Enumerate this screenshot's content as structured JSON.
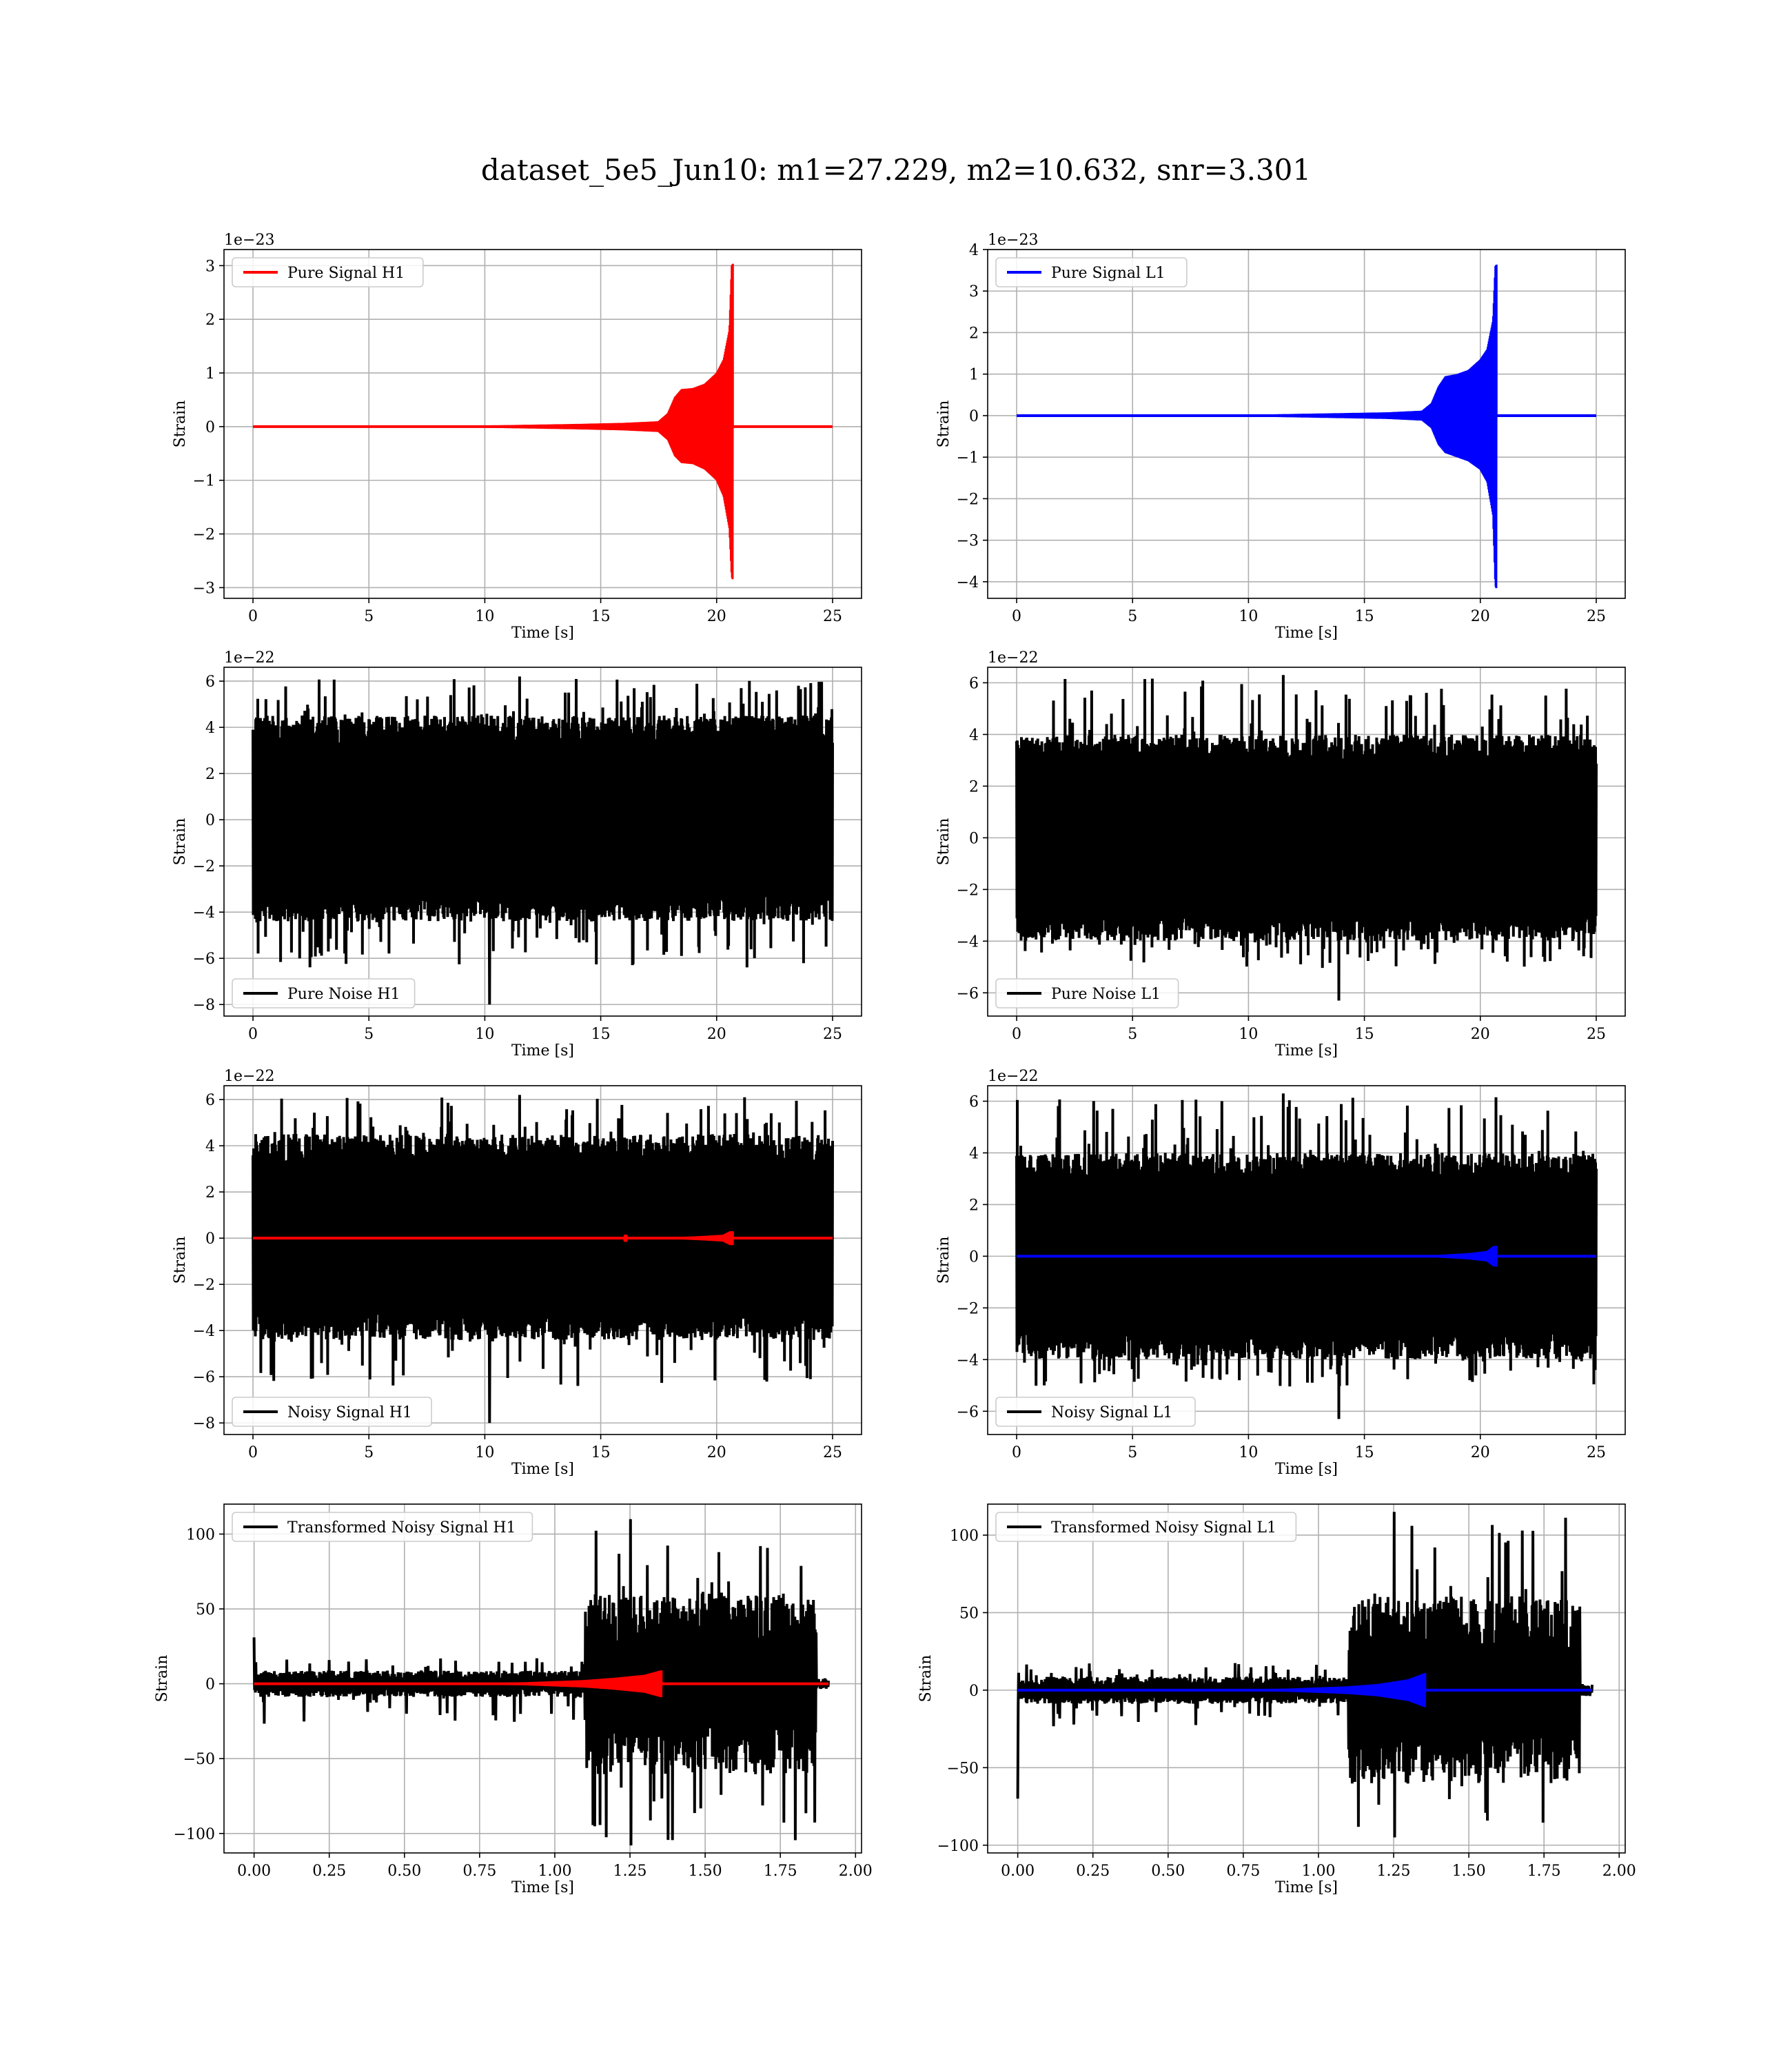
{
  "figure": {
    "title": "dataset_5e5_Jun10: m1=27.229, m2=10.632, snr=3.301"
  },
  "chart_data": [
    {
      "id": "pure-signal-h1",
      "type": "line",
      "xlabel": "Time [s]",
      "ylabel": "Strain",
      "offset_label": "1e−23",
      "xlim": [
        -1.25,
        26.25
      ],
      "ylim": [
        -3.2,
        3.3
      ],
      "xticks": [
        0,
        5,
        10,
        15,
        20,
        25
      ],
      "xtick_labels": [
        "0",
        "5",
        "10",
        "15",
        "20",
        "25"
      ],
      "yticks": [
        -3,
        -2,
        -1,
        0,
        1,
        2,
        3
      ],
      "ytick_labels": [
        "−3",
        "−2",
        "−1",
        "0",
        "1",
        "2",
        "3"
      ],
      "grid": true,
      "legend": {
        "location": "upper left",
        "entries": [
          {
            "label": "Pure Signal H1",
            "color": "#ff0000"
          }
        ]
      },
      "series": [
        {
          "name": "Pure Signal H1",
          "color": "#ff0000",
          "kind": "chirp",
          "x_start": 0,
          "x_end": 25,
          "merger_time": 20.7,
          "envelope_t": [
            0,
            10,
            14,
            16,
            17.5,
            17.9,
            18.2,
            18.5,
            19,
            19.5,
            20,
            20.3,
            20.55,
            20.65,
            20.72
          ],
          "envelope_upper": [
            0,
            0.02,
            0.05,
            0.07,
            0.1,
            0.25,
            0.55,
            0.7,
            0.72,
            0.8,
            1.0,
            1.25,
            1.8,
            3.0,
            3.05
          ],
          "envelope_lower": [
            0,
            -0.02,
            -0.05,
            -0.07,
            -0.1,
            -0.25,
            -0.55,
            -0.68,
            -0.7,
            -0.8,
            -1.0,
            -1.3,
            -1.9,
            -2.8,
            -2.88
          ]
        }
      ]
    },
    {
      "id": "pure-signal-l1",
      "type": "line",
      "xlabel": "Time [s]",
      "ylabel": "Strain",
      "offset_label": "1e−23",
      "xlim": [
        -1.25,
        26.25
      ],
      "ylim": [
        -4.4,
        4.0
      ],
      "xticks": [
        0,
        5,
        10,
        15,
        20,
        25
      ],
      "xtick_labels": [
        "0",
        "5",
        "10",
        "15",
        "20",
        "25"
      ],
      "yticks": [
        -4,
        -3,
        -2,
        -1,
        0,
        1,
        2,
        3,
        4
      ],
      "ytick_labels": [
        "−4",
        "−3",
        "−2",
        "−1",
        "0",
        "1",
        "2",
        "3",
        "4"
      ],
      "grid": true,
      "legend": {
        "location": "upper left",
        "entries": [
          {
            "label": "Pure Signal L1",
            "color": "#0000ff"
          }
        ]
      },
      "series": [
        {
          "name": "Pure Signal L1",
          "color": "#0000ff",
          "kind": "chirp",
          "x_start": 0,
          "x_end": 25,
          "merger_time": 20.7,
          "envelope_t": [
            0,
            10,
            14,
            16,
            17.5,
            17.9,
            18.2,
            18.5,
            19,
            19.5,
            20,
            20.3,
            20.55,
            20.65,
            20.72
          ],
          "envelope_upper": [
            0,
            0.02,
            0.06,
            0.08,
            0.12,
            0.3,
            0.7,
            0.95,
            1.0,
            1.1,
            1.35,
            1.6,
            2.3,
            3.6,
            3.65
          ],
          "envelope_lower": [
            0,
            -0.02,
            -0.06,
            -0.08,
            -0.12,
            -0.3,
            -0.7,
            -0.9,
            -1.0,
            -1.1,
            -1.3,
            -1.6,
            -2.4,
            -4.1,
            -4.2
          ]
        }
      ]
    },
    {
      "id": "pure-noise-h1",
      "type": "line",
      "xlabel": "Time [s]",
      "ylabel": "Strain",
      "offset_label": "1e−22",
      "xlim": [
        -1.25,
        26.25
      ],
      "ylim": [
        -8.5,
        6.6
      ],
      "xticks": [
        0,
        5,
        10,
        15,
        20,
        25
      ],
      "xtick_labels": [
        "0",
        "5",
        "10",
        "15",
        "20",
        "25"
      ],
      "yticks": [
        -8,
        -6,
        -4,
        -2,
        0,
        2,
        4,
        6
      ],
      "ytick_labels": [
        "−8",
        "−6",
        "−4",
        "−2",
        "0",
        "2",
        "4",
        "6"
      ],
      "grid": true,
      "legend": {
        "location": "lower left",
        "entries": [
          {
            "label": "Pure Noise H1",
            "color": "#000000"
          }
        ]
      },
      "series": [
        {
          "name": "Pure Noise H1",
          "color": "#000000",
          "kind": "noise",
          "x_start": 0,
          "x_end": 25,
          "core_upper": 4.3,
          "core_lower": -4.2,
          "peak_max": 6.2,
          "trough_min": -8.0,
          "trough_min_time": 10.2
        }
      ]
    },
    {
      "id": "pure-noise-l1",
      "type": "line",
      "xlabel": "Time [s]",
      "ylabel": "Strain",
      "offset_label": "1e−22",
      "xlim": [
        -1.25,
        26.25
      ],
      "ylim": [
        -6.9,
        6.6
      ],
      "xticks": [
        0,
        5,
        10,
        15,
        20,
        25
      ],
      "xtick_labels": [
        "0",
        "5",
        "10",
        "15",
        "20",
        "25"
      ],
      "yticks": [
        -6,
        -4,
        -2,
        0,
        2,
        4,
        6
      ],
      "ytick_labels": [
        "−6",
        "−4",
        "−2",
        "0",
        "2",
        "4",
        "6"
      ],
      "grid": true,
      "legend": {
        "location": "lower left",
        "entries": [
          {
            "label": "Pure Noise L1",
            "color": "#000000"
          }
        ]
      },
      "series": [
        {
          "name": "Pure Noise L1",
          "color": "#000000",
          "kind": "noise",
          "x_start": 0,
          "x_end": 25,
          "core_upper": 3.8,
          "core_lower": -3.8,
          "peak_max": 6.3,
          "trough_min": -6.3,
          "trough_min_time": 13.9
        }
      ]
    },
    {
      "id": "noisy-signal-h1",
      "type": "line",
      "xlabel": "Time [s]",
      "ylabel": "Strain",
      "offset_label": "1e−22",
      "xlim": [
        -1.25,
        26.25
      ],
      "ylim": [
        -8.5,
        6.6
      ],
      "xticks": [
        0,
        5,
        10,
        15,
        20,
        25
      ],
      "xtick_labels": [
        "0",
        "5",
        "10",
        "15",
        "20",
        "25"
      ],
      "yticks": [
        -8,
        -6,
        -4,
        -2,
        0,
        2,
        4,
        6
      ],
      "ytick_labels": [
        "−8",
        "−6",
        "−4",
        "−2",
        "0",
        "2",
        "4",
        "6"
      ],
      "grid": true,
      "legend": {
        "location": "lower left",
        "entries": [
          {
            "label": "Noisy Signal H1",
            "color": "#000000"
          }
        ]
      },
      "series": [
        {
          "name": "Noisy Signal H1",
          "color": "#000000",
          "kind": "noise",
          "x_start": 0,
          "x_end": 25,
          "core_upper": 4.3,
          "core_lower": -4.2,
          "peak_max": 6.2,
          "trough_min": -8.0,
          "trough_min_time": 10.2
        },
        {
          "name": "Pure Signal H1",
          "color": "#ff0000",
          "kind": "chirp",
          "x_start": 0,
          "x_end": 25,
          "merger_time": 20.7,
          "envelope_t": [
            0,
            16,
            18,
            19.5,
            20.3,
            20.6,
            20.72
          ],
          "envelope_upper": [
            0,
            0.01,
            0.03,
            0.1,
            0.15,
            0.3,
            0.3
          ],
          "envelope_lower": [
            0,
            -0.01,
            -0.03,
            -0.1,
            -0.15,
            -0.3,
            -0.3
          ]
        }
      ]
    },
    {
      "id": "noisy-signal-l1",
      "type": "line",
      "xlabel": "Time [s]",
      "ylabel": "Strain",
      "offset_label": "1e−22",
      "xlim": [
        -1.25,
        26.25
      ],
      "ylim": [
        -6.9,
        6.6
      ],
      "xticks": [
        0,
        5,
        10,
        15,
        20,
        25
      ],
      "xtick_labels": [
        "0",
        "5",
        "10",
        "15",
        "20",
        "25"
      ],
      "yticks": [
        -6,
        -4,
        -2,
        0,
        2,
        4,
        6
      ],
      "ytick_labels": [
        "−6",
        "−4",
        "−2",
        "0",
        "2",
        "4",
        "6"
      ],
      "grid": true,
      "legend": {
        "location": "lower left",
        "entries": [
          {
            "label": "Noisy Signal L1",
            "color": "#000000"
          }
        ]
      },
      "series": [
        {
          "name": "Noisy Signal L1",
          "color": "#000000",
          "kind": "noise",
          "x_start": 0,
          "x_end": 25,
          "core_upper": 3.8,
          "core_lower": -3.8,
          "peak_max": 6.3,
          "trough_min": -6.3,
          "trough_min_time": 13.9
        },
        {
          "name": "Pure Signal L1",
          "color": "#0000ff",
          "kind": "chirp",
          "x_start": 0,
          "x_end": 25,
          "merger_time": 20.7,
          "envelope_t": [
            0,
            16,
            18,
            19.5,
            20.3,
            20.6,
            20.72
          ],
          "envelope_upper": [
            0,
            0.01,
            0.04,
            0.12,
            0.2,
            0.4,
            0.4
          ],
          "envelope_lower": [
            0,
            -0.01,
            -0.04,
            -0.12,
            -0.2,
            -0.4,
            -0.4
          ]
        }
      ]
    },
    {
      "id": "transformed-noisy-signal-h1",
      "type": "line",
      "xlabel": "Time [s]",
      "ylabel": "Strain",
      "offset_label": "",
      "xlim": [
        -0.1,
        2.02
      ],
      "ylim": [
        -113,
        120
      ],
      "xticks": [
        0,
        0.25,
        0.5,
        0.75,
        1.0,
        1.25,
        1.5,
        1.75,
        2.0
      ],
      "xtick_labels": [
        "0.00",
        "0.25",
        "0.50",
        "0.75",
        "1.00",
        "1.25",
        "1.50",
        "1.75",
        "2.00"
      ],
      "yticks": [
        -100,
        -50,
        0,
        50,
        100
      ],
      "ytick_labels": [
        "−100",
        "−50",
        "0",
        "50",
        "100"
      ],
      "grid": true,
      "legend": {
        "location": "upper left",
        "entries": [
          {
            "label": "Transformed Noisy Signal H1",
            "color": "#000000"
          }
        ]
      },
      "series": [
        {
          "name": "Transformed Noisy Signal H1",
          "color": "#000000",
          "kind": "whitened",
          "x_start": 0,
          "x_end": 1.91,
          "step_time": 1.1,
          "drop_time": 1.87,
          "low_upper": 8,
          "low_lower": -8,
          "low_peak": 18,
          "low_trough": -30,
          "high_upper": 55,
          "high_lower": -55,
          "high_peak": 110,
          "high_trough": -108,
          "initial_spike": 31
        },
        {
          "name": "Pure Signal H1 (transformed)",
          "color": "#ff0000",
          "kind": "chirp",
          "x_start": 0,
          "x_end": 1.91,
          "merger_time": 1.355,
          "envelope_t": [
            0,
            0.7,
            0.9,
            1.1,
            1.2,
            1.3,
            1.355,
            1.36
          ],
          "envelope_upper": [
            0,
            0.3,
            1,
            2.5,
            4,
            6,
            9,
            9
          ],
          "envelope_lower": [
            0,
            -0.3,
            -1,
            -2.5,
            -4,
            -6,
            -9,
            -9
          ]
        }
      ]
    },
    {
      "id": "transformed-noisy-signal-l1",
      "type": "line",
      "xlabel": "Time [s]",
      "ylabel": "Strain",
      "offset_label": "",
      "xlim": [
        -0.1,
        2.02
      ],
      "ylim": [
        -105,
        120
      ],
      "xticks": [
        0,
        0.25,
        0.5,
        0.75,
        1.0,
        1.25,
        1.5,
        1.75,
        2.0
      ],
      "xtick_labels": [
        "0.00",
        "0.25",
        "0.50",
        "0.75",
        "1.00",
        "1.25",
        "1.50",
        "1.75",
        "2.00"
      ],
      "yticks": [
        -100,
        -50,
        0,
        50,
        100
      ],
      "ytick_labels": [
        "−100",
        "−50",
        "0",
        "50",
        "100"
      ],
      "grid": true,
      "legend": {
        "location": "upper left",
        "entries": [
          {
            "label": "Transformed Noisy Signal L1",
            "color": "#000000"
          }
        ]
      },
      "series": [
        {
          "name": "Transformed Noisy Signal L1",
          "color": "#000000",
          "kind": "whitened",
          "x_start": 0,
          "x_end": 1.91,
          "step_time": 1.1,
          "drop_time": 1.87,
          "low_upper": 8,
          "low_lower": -8,
          "low_peak": 18,
          "low_trough": -25,
          "high_upper": 55,
          "high_lower": -55,
          "high_peak": 115,
          "high_trough": -95,
          "initial_spike": -70
        },
        {
          "name": "Pure Signal L1 (transformed)",
          "color": "#0000ff",
          "kind": "chirp",
          "x_start": 0,
          "x_end": 1.91,
          "merger_time": 1.355,
          "envelope_t": [
            0,
            0.7,
            0.9,
            1.1,
            1.2,
            1.3,
            1.355,
            1.36
          ],
          "envelope_upper": [
            0,
            0.3,
            1,
            2.5,
            4,
            7,
            11,
            11
          ],
          "envelope_lower": [
            0,
            -0.3,
            -1,
            -2.5,
            -4,
            -7,
            -11,
            -11
          ]
        }
      ]
    }
  ]
}
